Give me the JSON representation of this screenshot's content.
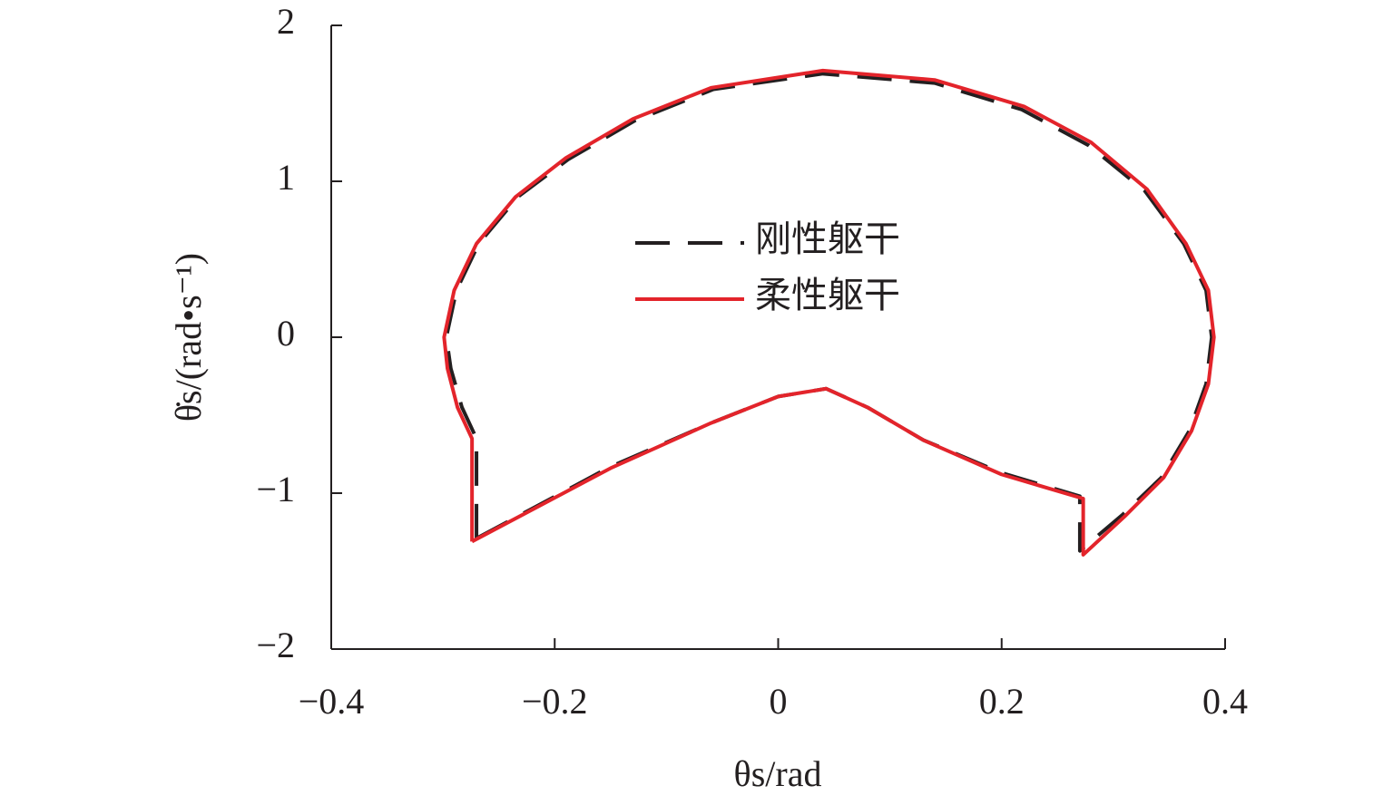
{
  "chart_data": {
    "type": "line",
    "x_label": "θs/rad",
    "y_label": "θ̇s/(rad•s⁻¹)",
    "xlim": [
      -0.4,
      0.4
    ],
    "ylim": [
      -2,
      2
    ],
    "xticks": [
      {
        "value": -0.4,
        "label": "−0.4"
      },
      {
        "value": -0.2,
        "label": "−0.2"
      },
      0,
      0.2,
      0.4
    ],
    "yticks": [
      {
        "value": -2,
        "label": "−2"
      },
      {
        "value": -1,
        "label": "−1"
      },
      0,
      1,
      2
    ],
    "legend": "upper center",
    "series": [
      {
        "name": "刚性躯干",
        "color": "#231f20",
        "style": "dashed",
        "x": [
          -0.27,
          -0.27,
          -0.283,
          -0.293,
          -0.297,
          -0.288,
          -0.268,
          -0.233,
          -0.188,
          -0.128,
          -0.058,
          0.04,
          0.14,
          0.218,
          0.278,
          0.328,
          0.363,
          0.383,
          0.388,
          0.383,
          0.368,
          0.343,
          0.308,
          0.27,
          0.27,
          0.2,
          0.13,
          0.08,
          0.043,
          0.0,
          -0.06,
          -0.15,
          -0.27
        ],
        "values": [
          -1.29,
          -0.65,
          -0.45,
          -0.2,
          0,
          0.3,
          0.6,
          0.9,
          1.14,
          1.39,
          1.59,
          1.69,
          1.63,
          1.46,
          1.23,
          0.94,
          0.6,
          0.3,
          0,
          -0.3,
          -0.6,
          -0.9,
          -1.14,
          -1.37,
          -1.02,
          -0.87,
          -0.66,
          -0.45,
          -0.33,
          -0.38,
          -0.55,
          -0.83,
          -1.29
        ]
      },
      {
        "name": "柔性躯干",
        "color": "#e3242b",
        "style": "solid",
        "x": [
          -0.274,
          -0.274,
          -0.287,
          -0.296,
          -0.299,
          -0.29,
          -0.27,
          -0.235,
          -0.19,
          -0.13,
          -0.06,
          0.04,
          0.14,
          0.22,
          0.28,
          0.33,
          0.365,
          0.385,
          0.39,
          0.385,
          0.37,
          0.345,
          0.31,
          0.273,
          0.273,
          0.2,
          0.13,
          0.08,
          0.043,
          0.0,
          -0.06,
          -0.15,
          -0.274
        ],
        "values": [
          -1.31,
          -0.65,
          -0.45,
          -0.2,
          0,
          0.3,
          0.6,
          0.9,
          1.15,
          1.4,
          1.6,
          1.71,
          1.65,
          1.48,
          1.25,
          0.95,
          0.6,
          0.3,
          0,
          -0.3,
          -0.6,
          -0.9,
          -1.15,
          -1.395,
          -1.035,
          -0.88,
          -0.66,
          -0.45,
          -0.33,
          -0.38,
          -0.55,
          -0.84,
          -1.31
        ]
      }
    ]
  }
}
